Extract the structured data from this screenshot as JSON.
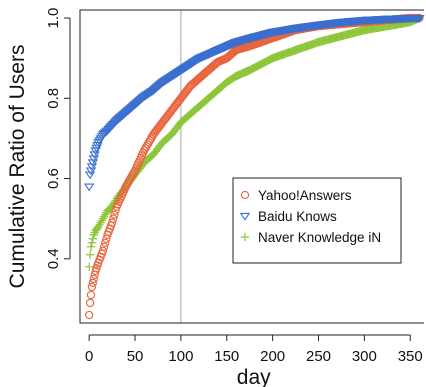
{
  "chart_data": {
    "type": "scatter",
    "title": "",
    "xlabel": "day",
    "ylabel": "Cumulative Ratio of Users",
    "xlim": [
      -10,
      365
    ],
    "ylim": [
      0.24,
      1.02
    ],
    "xticks": [
      "0",
      "50",
      "100",
      "150",
      "200",
      "250",
      "300",
      "350"
    ],
    "xtick_values": [
      0,
      50,
      100,
      150,
      200,
      250,
      300,
      350
    ],
    "yticks": [
      "0.4",
      "0.6",
      "0.8",
      "1.0"
    ],
    "ytick_values": [
      0.4,
      0.6,
      0.8,
      1.0
    ],
    "vline": {
      "x": 100,
      "color": "#aaaaaa"
    },
    "legend_position": "right",
    "series": [
      {
        "name": "Yahoo!Answers",
        "marker": "circle",
        "color": "#e8643c",
        "points": [
          [
            0,
            0.26
          ],
          [
            1,
            0.29
          ],
          [
            2,
            0.31
          ],
          [
            3,
            0.33
          ],
          [
            5,
            0.35
          ],
          [
            7,
            0.37
          ],
          [
            10,
            0.39
          ],
          [
            15,
            0.42
          ],
          [
            20,
            0.46
          ],
          [
            25,
            0.49
          ],
          [
            30,
            0.53
          ],
          [
            40,
            0.58
          ],
          [
            50,
            0.62
          ],
          [
            60,
            0.67
          ],
          [
            70,
            0.71
          ],
          [
            80,
            0.74
          ],
          [
            90,
            0.77
          ],
          [
            100,
            0.8
          ],
          [
            110,
            0.83
          ],
          [
            120,
            0.85
          ],
          [
            130,
            0.87
          ],
          [
            140,
            0.89
          ],
          [
            150,
            0.9
          ],
          [
            160,
            0.92
          ],
          [
            175,
            0.93
          ],
          [
            200,
            0.95
          ],
          [
            225,
            0.97
          ],
          [
            250,
            0.98
          ],
          [
            275,
            0.985
          ],
          [
            300,
            0.99
          ],
          [
            325,
            0.995
          ],
          [
            350,
            1.0
          ],
          [
            360,
            1.0
          ]
        ]
      },
      {
        "name": "Baidu Knows",
        "marker": "triangle-down",
        "color": "#3a6fd0",
        "points": [
          [
            0,
            0.58
          ],
          [
            1,
            0.61
          ],
          [
            2,
            0.62
          ],
          [
            3,
            0.63
          ],
          [
            5,
            0.65
          ],
          [
            7,
            0.67
          ],
          [
            10,
            0.69
          ],
          [
            15,
            0.71
          ],
          [
            20,
            0.72
          ],
          [
            30,
            0.745
          ],
          [
            40,
            0.765
          ],
          [
            50,
            0.785
          ],
          [
            60,
            0.805
          ],
          [
            70,
            0.82
          ],
          [
            80,
            0.84
          ],
          [
            90,
            0.855
          ],
          [
            100,
            0.87
          ],
          [
            110,
            0.885
          ],
          [
            120,
            0.9
          ],
          [
            130,
            0.91
          ],
          [
            140,
            0.92
          ],
          [
            150,
            0.93
          ],
          [
            160,
            0.94
          ],
          [
            175,
            0.95
          ],
          [
            200,
            0.965
          ],
          [
            225,
            0.975
          ],
          [
            250,
            0.983
          ],
          [
            275,
            0.99
          ],
          [
            300,
            0.995
          ],
          [
            325,
            0.998
          ],
          [
            350,
            1.0
          ],
          [
            360,
            1.0
          ]
        ]
      },
      {
        "name": "Naver Knowledge iN",
        "marker": "plus",
        "color": "#8ec63a",
        "points": [
          [
            0,
            0.38
          ],
          [
            1,
            0.41
          ],
          [
            2,
            0.43
          ],
          [
            3,
            0.44
          ],
          [
            5,
            0.46
          ],
          [
            7,
            0.47
          ],
          [
            10,
            0.48
          ],
          [
            15,
            0.5
          ],
          [
            20,
            0.52
          ],
          [
            25,
            0.53
          ],
          [
            30,
            0.55
          ],
          [
            40,
            0.58
          ],
          [
            50,
            0.61
          ],
          [
            60,
            0.64
          ],
          [
            70,
            0.66
          ],
          [
            80,
            0.69
          ],
          [
            90,
            0.71
          ],
          [
            100,
            0.74
          ],
          [
            110,
            0.76
          ],
          [
            120,
            0.78
          ],
          [
            130,
            0.8
          ],
          [
            140,
            0.82
          ],
          [
            150,
            0.84
          ],
          [
            160,
            0.855
          ],
          [
            175,
            0.87
          ],
          [
            200,
            0.9
          ],
          [
            225,
            0.92
          ],
          [
            250,
            0.94
          ],
          [
            275,
            0.955
          ],
          [
            300,
            0.97
          ],
          [
            325,
            0.98
          ],
          [
            350,
            0.99
          ],
          [
            360,
            1.0
          ]
        ]
      }
    ]
  }
}
